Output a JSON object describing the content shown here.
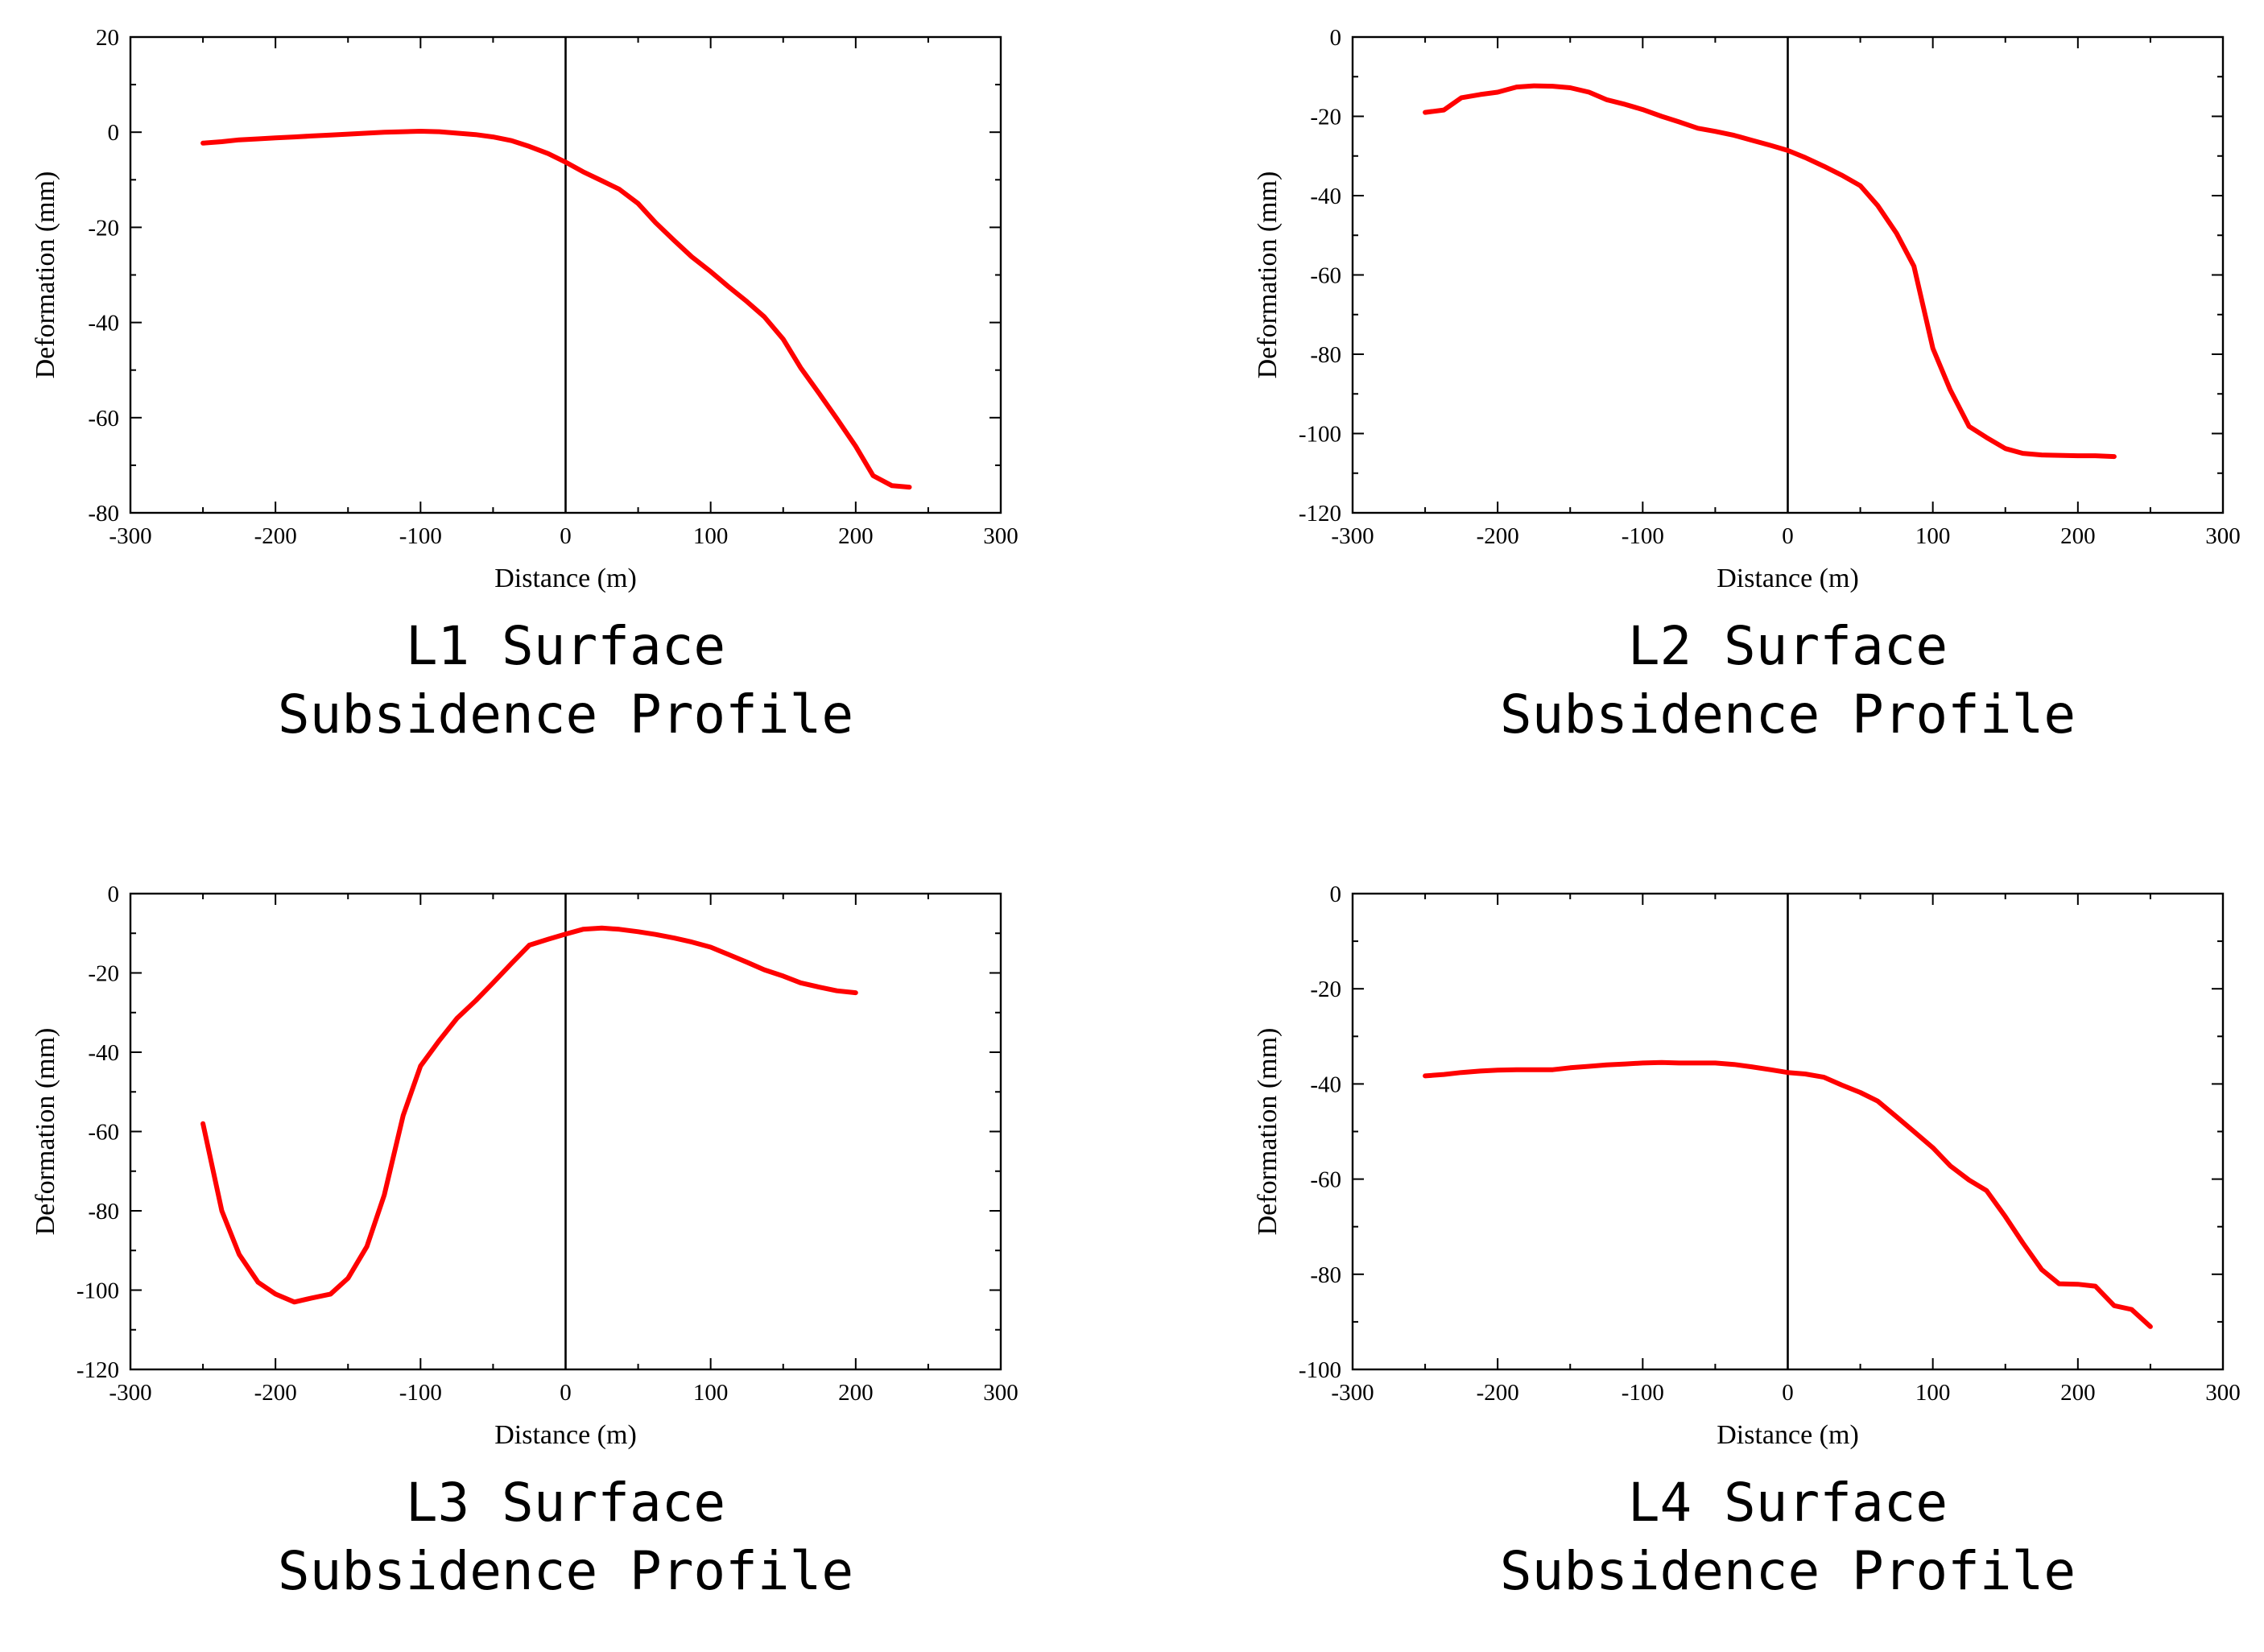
{
  "colors": {
    "series": "#ff0000",
    "axis": "#000000",
    "background": "#ffffff"
  },
  "chart_data": [
    {
      "type": "line",
      "caption_lines": [
        "L1 Surface",
        "Subsidence Profile"
      ],
      "xlabel": "Distance (m)",
      "ylabel": "Deformation (mm)",
      "xlim": [
        -300,
        300
      ],
      "ylim": [
        -80,
        20
      ],
      "xticks": [
        -300,
        -200,
        -100,
        0,
        100,
        200,
        300
      ],
      "yticks": [
        -80,
        -60,
        -40,
        -20,
        0,
        20
      ],
      "tick_labels_x": [
        "-300",
        "-200",
        "-100",
        "0",
        "100",
        "200",
        "300"
      ],
      "tick_labels_y": [
        "-80",
        "-60",
        "-40",
        "-20",
        "0",
        "20"
      ],
      "vertical_reference_x": 0,
      "grid": false,
      "series": [
        {
          "x": [
            -250,
            -237,
            -225,
            -212,
            -200,
            -187,
            -175,
            -162,
            -150,
            -137,
            -125,
            -112,
            -100,
            -87,
            -75,
            -62,
            -50,
            -37,
            -25,
            -12,
            0,
            12,
            25,
            37,
            50,
            62,
            75,
            87,
            100,
            112,
            125,
            137,
            150,
            162,
            175,
            187,
            200,
            212,
            225,
            237
          ],
          "y": [
            -2.3,
            -2.0,
            -1.6,
            -1.4,
            -1.2,
            -1.0,
            -0.8,
            -0.6,
            -0.4,
            -0.2,
            0.0,
            0.1,
            0.2,
            0.1,
            -0.2,
            -0.5,
            -1.0,
            -1.8,
            -3.0,
            -4.5,
            -6.3,
            -8.3,
            -10.2,
            -12.0,
            -15.0,
            -19.0,
            -22.8,
            -26.2,
            -29.3,
            -32.4,
            -35.6,
            -38.8,
            -43.5,
            -49.5,
            -55.0,
            -60.2,
            -66.0,
            -72.2,
            -74.3,
            -74.6
          ]
        }
      ]
    },
    {
      "type": "line",
      "caption_lines": [
        "L2 Surface",
        "Subsidence Profile"
      ],
      "xlabel": "Distance (m)",
      "ylabel": "Deformation (mm)",
      "xlim": [
        -300,
        300
      ],
      "ylim": [
        -120,
        0
      ],
      "xticks": [
        -300,
        -200,
        -100,
        0,
        100,
        200,
        300
      ],
      "yticks": [
        -120,
        -100,
        -80,
        -60,
        -40,
        -20,
        0
      ],
      "tick_labels_x": [
        "-300",
        "-200",
        "-100",
        "0",
        "100",
        "200",
        "300"
      ],
      "tick_labels_y": [
        "-120",
        "-100",
        "-80",
        "-60",
        "-40",
        "-20",
        "0"
      ],
      "vertical_reference_x": 0,
      "grid": false,
      "series": [
        {
          "x": [
            -250,
            -237,
            -225,
            -212,
            -200,
            -187,
            -175,
            -162,
            -150,
            -137,
            -125,
            -112,
            -100,
            -87,
            -75,
            -62,
            -50,
            -37,
            -25,
            -12,
            0,
            12,
            25,
            37,
            50,
            62,
            75,
            87,
            100,
            112,
            125,
            137,
            150,
            162,
            175,
            187,
            200,
            212,
            225
          ],
          "y": [
            -19.0,
            -18.4,
            -15.3,
            -14.5,
            -13.9,
            -12.6,
            -12.3,
            -12.4,
            -12.8,
            -13.9,
            -15.8,
            -17.0,
            -18.3,
            -20.0,
            -21.4,
            -23.0,
            -23.8,
            -24.8,
            -26.0,
            -27.3,
            -28.6,
            -30.4,
            -32.6,
            -34.8,
            -37.5,
            -42.5,
            -49.5,
            -57.8,
            -78.5,
            -89.0,
            -98.2,
            -101.0,
            -103.8,
            -105.0,
            -105.4,
            -105.5,
            -105.6,
            -105.6,
            -105.8
          ]
        }
      ]
    },
    {
      "type": "line",
      "caption_lines": [
        "L3 Surface",
        "Subsidence Profile"
      ],
      "xlabel": "Distance (m)",
      "ylabel": "Deformation (mm)",
      "xlim": [
        -300,
        300
      ],
      "ylim": [
        -120,
        0
      ],
      "xticks": [
        -300,
        -200,
        -100,
        0,
        100,
        200,
        300
      ],
      "yticks": [
        -120,
        -100,
        -80,
        -60,
        -40,
        -20,
        0
      ],
      "tick_labels_x": [
        "-300",
        "-200",
        "-100",
        "0",
        "100",
        "200",
        "300"
      ],
      "tick_labels_y": [
        "-120",
        "-100",
        "-80",
        "-60",
        "-40",
        "-20",
        "0"
      ],
      "vertical_reference_x": 0,
      "grid": false,
      "series": [
        {
          "x": [
            -250,
            -237,
            -225,
            -212,
            -200,
            -187,
            -175,
            -162,
            -150,
            -137,
            -125,
            -112,
            -100,
            -87,
            -75,
            -62,
            -50,
            -37,
            -25,
            -12,
            0,
            12,
            25,
            37,
            50,
            62,
            75,
            87,
            100,
            112,
            125,
            137,
            150,
            162,
            175,
            187,
            200
          ],
          "y": [
            -58.0,
            -80.0,
            -91.0,
            -98.0,
            -101.0,
            -103.0,
            -102.0,
            -101.0,
            -97.0,
            -89.0,
            -76.0,
            -56.0,
            -43.5,
            -37.0,
            -31.5,
            -27.0,
            -22.5,
            -17.5,
            -13.0,
            -11.5,
            -10.2,
            -9.0,
            -8.7,
            -9.0,
            -9.6,
            -10.3,
            -11.2,
            -12.2,
            -13.5,
            -15.3,
            -17.3,
            -19.2,
            -20.8,
            -22.5,
            -23.6,
            -24.5,
            -25.0
          ]
        }
      ]
    },
    {
      "type": "line",
      "caption_lines": [
        "L4 Surface",
        "Subsidence Profile"
      ],
      "xlabel": "Distance (m)",
      "ylabel": "Deformation (mm)",
      "xlim": [
        -300,
        300
      ],
      "ylim": [
        -100,
        0
      ],
      "xticks": [
        -300,
        -200,
        -100,
        0,
        100,
        200,
        300
      ],
      "yticks": [
        -100,
        -80,
        -60,
        -40,
        -20,
        0
      ],
      "tick_labels_x": [
        "-300",
        "-200",
        "-100",
        "0",
        "100",
        "200",
        "300"
      ],
      "tick_labels_y": [
        "-100",
        "-80",
        "-60",
        "-40",
        "-20",
        "0"
      ],
      "vertical_reference_x": 0,
      "grid": false,
      "series": [
        {
          "x": [
            -250,
            -237,
            -225,
            -212,
            -200,
            -187,
            -175,
            -162,
            -150,
            -137,
            -125,
            -112,
            -100,
            -87,
            -75,
            -62,
            -50,
            -37,
            -25,
            -12,
            0,
            12,
            25,
            37,
            50,
            62,
            75,
            87,
            100,
            112,
            125,
            137,
            150,
            162,
            175,
            187,
            200,
            212,
            225,
            237,
            250
          ],
          "y": [
            -38.3,
            -38.0,
            -37.6,
            -37.3,
            -37.1,
            -37.0,
            -37.0,
            -37.0,
            -36.6,
            -36.3,
            -36.0,
            -35.8,
            -35.6,
            -35.5,
            -35.6,
            -35.6,
            -35.6,
            -35.9,
            -36.4,
            -37.0,
            -37.6,
            -37.9,
            -38.6,
            -40.2,
            -41.8,
            -43.6,
            -46.9,
            -50.0,
            -53.4,
            -57.2,
            -60.2,
            -62.4,
            -67.9,
            -73.4,
            -79.0,
            -82.0,
            -82.1,
            -82.5,
            -86.6,
            -87.4,
            -91.0
          ]
        }
      ]
    }
  ]
}
